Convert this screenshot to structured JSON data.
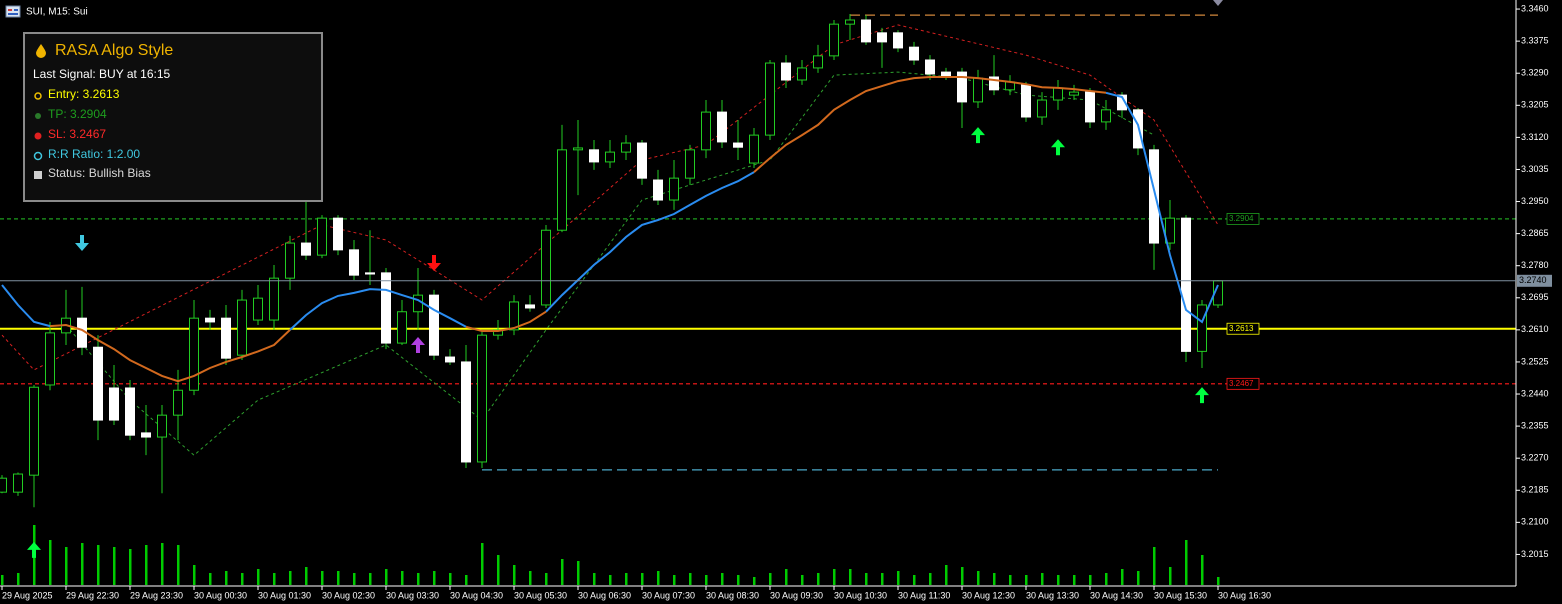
{
  "window_title": "SUI, M15: Sui",
  "panel": {
    "title": "RASA Algo Style",
    "last_signal": "Last Signal: BUY at 16:15",
    "entry": "Entry: 3.2613",
    "tp": "TP: 3.2904",
    "sl": "SL: 3.2467",
    "rr": "R:R Ratio: 1:2.00",
    "status": "Status: Bullish Bias"
  },
  "chart_data": {
    "type": "candlestick",
    "ylim": [
      3.1934,
      3.3484
    ],
    "yticks": [
      {
        "value": 3.346,
        "label": "3.3460"
      },
      3.3375,
      {
        "value": 3.329,
        "label": "3.3290"
      },
      3.3205,
      {
        "value": 3.312,
        "label": "3.3120"
      },
      3.3035,
      {
        "value": 3.295,
        "label": "3.2950"
      },
      3.2865,
      {
        "value": 3.278,
        "label": "3.2780"
      },
      3.2695,
      {
        "value": 3.261,
        "label": "3.2610"
      },
      3.2525,
      {
        "value": 3.244,
        "label": "3.2440"
      },
      3.2355,
      {
        "value": 3.227,
        "label": "3.2270"
      },
      3.2185,
      {
        "value": 3.21,
        "label": "3.2100"
      },
      3.2015
    ],
    "xticks": [
      {
        "value": 0,
        "label": "29 Aug 2025"
      },
      {
        "value": 4,
        "label": "29 Aug 22:30"
      },
      {
        "value": 8,
        "label": "29 Aug 23:30"
      },
      {
        "value": 12,
        "label": "30 Aug 00:30"
      },
      {
        "value": 16,
        "label": "30 Aug 01:30"
      },
      {
        "value": 20,
        "label": "30 Aug 02:30"
      },
      {
        "value": 24,
        "label": "30 Aug 03:30"
      },
      {
        "value": 28,
        "label": "30 Aug 04:30"
      },
      {
        "value": 32,
        "label": "30 Aug 05:30"
      },
      {
        "value": 36,
        "label": "30 Aug 06:30"
      },
      {
        "value": 40,
        "label": "30 Aug 07:30"
      },
      {
        "value": 44,
        "label": "30 Aug 08:30"
      },
      {
        "value": 48,
        "label": "30 Aug 09:30"
      },
      {
        "value": 52,
        "label": "30 Aug 10:30"
      },
      {
        "value": 56,
        "label": "30 Aug 11:30"
      },
      {
        "value": 60,
        "label": "30 Aug 12:30"
      },
      {
        "value": 64,
        "label": "30 Aug 13:30"
      },
      {
        "value": 68,
        "label": "30 Aug 14:30"
      },
      {
        "value": 72,
        "label": "30 Aug 15:30"
      },
      {
        "value": 76,
        "label": "30 Aug 16:30"
      }
    ],
    "bull_color": "#22cc22",
    "bear_color": "#ffffff",
    "wick_color": "#22cc22",
    "open": [
      3.218,
      3.218,
      3.2225,
      3.2464,
      3.2602,
      3.2641,
      3.2564,
      3.2456,
      3.2456,
      3.2337,
      3.2326,
      3.2384,
      3.245,
      3.2641,
      3.2641,
      3.2543,
      3.2636,
      3.2636,
      3.2747,
      3.284,
      3.2808,
      3.2906,
      3.2822,
      3.2761,
      3.2761,
      3.2575,
      3.2658,
      3.2702,
      3.2538,
      3.2525,
      3.226,
      3.2596,
      3.261,
      3.2676,
      3.2676,
      3.2874,
      3.3087,
      3.3087,
      3.3055,
      3.3081,
      3.3105,
      3.3007,
      3.2954,
      3.3012,
      3.3087,
      3.3187,
      3.3105,
      3.3052,
      3.3126,
      3.3317,
      3.3272,
      3.3304,
      3.3336,
      3.342,
      3.3431,
      3.3397,
      3.3397,
      3.3359,
      3.3325,
      3.3293,
      3.3293,
      3.3214,
      3.328,
      3.3246,
      3.3259,
      3.3174,
      3.3219,
      3.3232,
      3.324,
      3.3161,
      3.3232,
      3.3193,
      3.3087,
      3.284,
      3.2906,
      3.2553,
      3.2676
    ],
    "high": [
      3.2225,
      3.2232,
      3.2464,
      3.2631,
      3.2716,
      3.2724,
      3.2596,
      3.2517,
      3.2477,
      3.2411,
      3.2411,
      3.2504,
      3.2689,
      3.2663,
      3.2676,
      3.2716,
      3.2729,
      3.2782,
      3.2859,
      3.2954,
      3.2914,
      3.2914,
      3.2848,
      3.2874,
      3.2774,
      3.2689,
      3.2774,
      3.2716,
      3.2559,
      3.257,
      3.261,
      3.2636,
      3.2702,
      3.2702,
      3.2888,
      3.3153,
      3.3166,
      3.3113,
      3.3113,
      3.3126,
      3.3113,
      3.3034,
      3.306,
      3.31,
      3.3219,
      3.3219,
      3.3166,
      3.3145,
      3.3325,
      3.3338,
      3.3325,
      3.3365,
      3.3431,
      3.3447,
      3.3444,
      3.341,
      3.3404,
      3.3373,
      3.3338,
      3.3304,
      3.3304,
      3.3299,
      3.3338,
      3.3285,
      3.3267,
      3.324,
      3.3272,
      3.3259,
      3.3251,
      3.3219,
      3.324,
      3.3198,
      3.31,
      3.2954,
      3.2914,
      3.2689,
      3.2742
    ],
    "low": [
      3.2177,
      3.217,
      3.214,
      3.245,
      3.257,
      3.2543,
      3.2318,
      3.2358,
      3.2318,
      3.2278,
      3.2177,
      3.2318,
      3.2437,
      3.261,
      3.2517,
      3.253,
      3.2623,
      3.261,
      3.2716,
      3.2795,
      3.28,
      3.2808,
      3.2742,
      3.2729,
      3.2559,
      3.257,
      3.261,
      3.253,
      3.2517,
      3.2244,
      3.2244,
      3.2584,
      3.2596,
      3.2658,
      3.2668,
      3.2869,
      3.2967,
      3.3034,
      3.3039,
      3.306,
      3.2994,
      3.2941,
      3.2928,
      3.2994,
      3.3065,
      3.3092,
      3.306,
      3.3039,
      3.3113,
      3.3251,
      3.3259,
      3.3291,
      3.3325,
      3.3378,
      3.3365,
      3.3304,
      3.3346,
      3.3312,
      3.3272,
      3.3272,
      3.3145,
      3.3198,
      3.3232,
      3.3232,
      3.3161,
      3.3153,
      3.3193,
      3.3219,
      3.3145,
      3.314,
      3.3171,
      3.3073,
      3.2769,
      3.2822,
      3.2525,
      3.2509,
      3.2668
    ],
    "close": [
      3.2217,
      3.2228,
      3.2458,
      3.2602,
      3.2641,
      3.2564,
      3.2371,
      3.2371,
      3.2331,
      3.2326,
      3.2384,
      3.245,
      3.2641,
      3.2631,
      3.2535,
      3.2689,
      3.2694,
      3.2747,
      3.284,
      3.2808,
      3.2906,
      3.2822,
      3.2755,
      3.2758,
      3.2575,
      3.2658,
      3.2702,
      3.2543,
      3.2525,
      3.226,
      3.2596,
      3.261,
      3.2684,
      3.2668,
      3.2874,
      3.3087,
      3.3092,
      3.3055,
      3.3081,
      3.3105,
      3.3012,
      3.2954,
      3.3012,
      3.3087,
      3.3187,
      3.3108,
      3.3094,
      3.3126,
      3.3317,
      3.3272,
      3.3304,
      3.3336,
      3.342,
      3.3431,
      3.3373,
      3.3373,
      3.3357,
      3.3325,
      3.3288,
      3.3283,
      3.3214,
      3.3277,
      3.3246,
      3.3267,
      3.3174,
      3.3219,
      3.3251,
      3.324,
      3.3161,
      3.3193,
      3.3193,
      3.3092,
      3.284,
      3.2906,
      3.2553,
      3.2676,
      3.274
    ],
    "volume_color": "#00cc00",
    "volume": [
      10,
      12,
      60,
      45,
      38,
      42,
      40,
      38,
      36,
      40,
      42,
      40,
      20,
      12,
      14,
      12,
      16,
      12,
      14,
      18,
      14,
      14,
      12,
      12,
      16,
      14,
      12,
      14,
      12,
      10,
      42,
      30,
      20,
      14,
      12,
      26,
      24,
      12,
      10,
      12,
      12,
      14,
      10,
      12,
      10,
      12,
      10,
      8,
      12,
      16,
      10,
      12,
      16,
      16,
      12,
      12,
      14,
      10,
      12,
      20,
      18,
      14,
      12,
      10,
      10,
      12,
      10,
      10,
      10,
      12,
      16,
      14,
      38,
      18,
      45,
      30,
      8
    ],
    "moving_average": [
      {
        "color": "#2a8cf0",
        "values": [
          3.2729,
          3.2676,
          3.2631,
          3.262,
          null,
          null,
          null,
          null,
          null,
          null,
          null,
          null,
          null,
          null,
          null,
          null,
          null,
          null,
          3.261,
          3.2649,
          3.2681,
          3.27,
          3.2708,
          3.2718,
          3.2716,
          3.2702,
          3.2689,
          3.2663,
          3.2641,
          3.2618,
          null,
          null,
          null,
          null,
          3.2658,
          3.2702,
          3.2742,
          3.2782,
          3.2816,
          3.2856,
          3.2888,
          3.2901,
          3.2917,
          3.2941,
          3.2965,
          3.2986,
          3.3004,
          3.3028,
          null,
          null,
          null,
          null,
          null,
          null,
          null,
          null,
          null,
          null,
          null,
          null,
          null,
          null,
          null,
          null,
          null,
          null,
          null,
          null,
          null,
          3.3238,
          3.3227,
          3.3153,
          3.2981,
          3.2808,
          3.2663,
          3.2631,
          3.2729
        ]
      },
      {
        "color": "#d2691e",
        "values": [
          null,
          null,
          null,
          3.262,
          3.2623,
          3.261,
          3.2583,
          3.2559,
          3.253,
          3.2509,
          3.2488,
          3.2474,
          3.2488,
          3.2509,
          3.2525,
          3.2538,
          3.2553,
          3.257,
          3.261,
          null,
          null,
          null,
          null,
          null,
          null,
          null,
          null,
          null,
          null,
          3.2618,
          3.2607,
          3.2607,
          3.2615,
          3.2631,
          3.2658,
          null,
          null,
          null,
          null,
          null,
          null,
          null,
          null,
          null,
          null,
          null,
          null,
          3.3028,
          3.3065,
          3.31,
          3.3126,
          3.3153,
          3.3193,
          3.3219,
          3.3243,
          3.3256,
          3.3269,
          3.3277,
          3.328,
          3.328,
          3.328,
          3.3277,
          3.3272,
          3.3267,
          3.3261,
          3.3253,
          3.3251,
          3.3248,
          3.3243,
          3.3238,
          null,
          null,
          null,
          null,
          null,
          null,
          null
        ]
      }
    ],
    "bands": [
      {
        "color": "#d42020",
        "x": [
          0,
          2,
          20,
          24,
          28,
          30,
          40,
          44,
          52,
          56,
          60,
          64,
          68,
          72,
          76
        ],
        "values": [
          3.2596,
          3.2504,
          3.2888,
          3.2848,
          3.2742,
          3.2689,
          3.306,
          3.31,
          3.3365,
          3.3418,
          3.3378,
          3.3338,
          3.3285,
          3.3166,
          3.2888
        ]
      },
      {
        "color": "#2ea02e",
        "x": [
          4,
          8,
          12,
          16,
          24,
          30,
          34,
          40,
          44,
          48,
          52,
          56,
          60,
          64,
          68,
          72
        ],
        "values": [
          3.2623,
          3.2424,
          3.2278,
          3.2424,
          3.257,
          3.2371,
          3.261,
          3.2954,
          3.3007,
          3.306,
          3.3285,
          3.3293,
          3.3277,
          3.3232,
          3.3219,
          3.3126
        ]
      }
    ],
    "levels": [
      {
        "value": 3.2904,
        "color": "#1e9e1e",
        "dashed": true
      },
      {
        "value": 3.2613,
        "color": "#ffff00",
        "dashed": false
      },
      {
        "value": 3.2467,
        "color": "#ff1a1a",
        "dashed": true
      }
    ],
    "current_price": {
      "value": 3.274,
      "label": "3.2740",
      "color": "#7f8f9f"
    },
    "range_lines": [
      {
        "value": 3.3444,
        "from": 53,
        "to": 76,
        "color": "#d2883c"
      },
      {
        "value": 3.2239,
        "from": 30,
        "to": 76,
        "color": "#4aa8c8"
      }
    ],
    "signals": [
      {
        "index": 2,
        "price": 3.2027,
        "direction": "up",
        "color": "#00ff40"
      },
      {
        "index": 5,
        "price": 3.284,
        "direction": "down",
        "color": "#40c8e0"
      },
      {
        "index": 26,
        "price": 3.257,
        "direction": "up",
        "color": "#b040e0"
      },
      {
        "index": 27,
        "price": 3.2787,
        "direction": "down",
        "color": "#ff1010"
      },
      {
        "index": 61,
        "price": 3.3126,
        "direction": "up",
        "color": "#00ff40"
      },
      {
        "index": 66,
        "price": 3.3094,
        "direction": "up",
        "color": "#00ff40"
      },
      {
        "index": 75,
        "price": 3.2437,
        "direction": "up",
        "color": "#00ff40"
      }
    ]
  }
}
